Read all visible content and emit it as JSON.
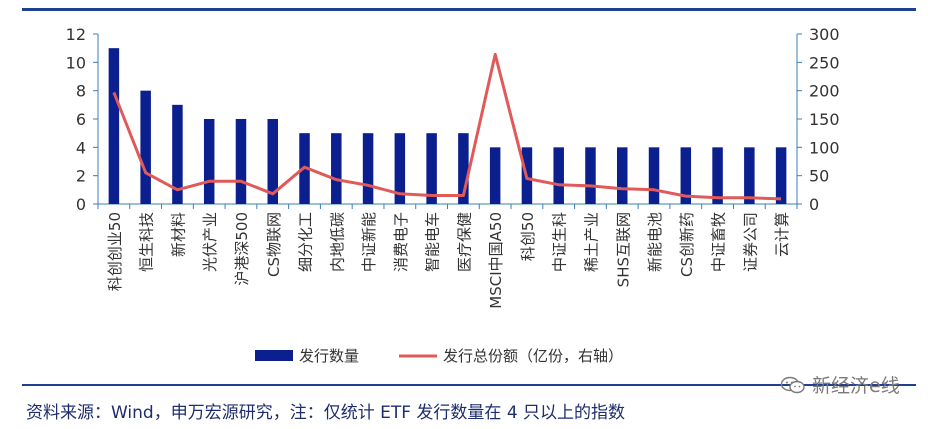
{
  "chart_data": {
    "type": "bar",
    "categories": [
      "科创创业50",
      "恒生科技",
      "新材料",
      "光伏产业",
      "沪港深500",
      "CS物联网",
      "细分化工",
      "内地低碳",
      "中证新能",
      "消费电子",
      "智能电车",
      "医疗保健",
      "MSCI中国A50",
      "科创50",
      "中证生科",
      "稀土产业",
      "SHS互联网",
      "新能电池",
      "CS创新药",
      "中证畜牧",
      "证券公司",
      "云计算"
    ],
    "series": [
      {
        "name": "发行数量",
        "type": "bar",
        "axis": "left",
        "color": "#0b1f8f",
        "values": [
          11,
          8,
          7,
          6,
          6,
          6,
          5,
          5,
          5,
          5,
          5,
          5,
          4,
          4,
          4,
          4,
          4,
          4,
          4,
          4,
          4,
          4
        ]
      },
      {
        "name": "发行总份额（亿份，右轴）",
        "type": "line",
        "axis": "right",
        "color": "#e05a5a",
        "values": [
          197,
          55,
          25,
          40,
          40,
          18,
          65,
          43,
          33,
          18,
          15,
          15,
          264,
          45,
          34,
          32,
          27,
          25,
          14,
          11,
          11,
          9
        ]
      }
    ],
    "y_left": {
      "min": 0,
      "max": 12,
      "ticks": [
        0,
        2,
        4,
        6,
        8,
        10,
        12
      ]
    },
    "y_right": {
      "min": 0,
      "max": 300,
      "ticks": [
        0,
        50,
        100,
        150,
        200,
        250,
        300
      ]
    },
    "axis_color": "#3a7fb8",
    "legend_position": "bottom"
  },
  "footer": {
    "source": "资料来源：Wind，申万宏源研究，注：仅统计 ETF 发行数量在 4 只以上的指数",
    "watermark": "新经济e线"
  }
}
